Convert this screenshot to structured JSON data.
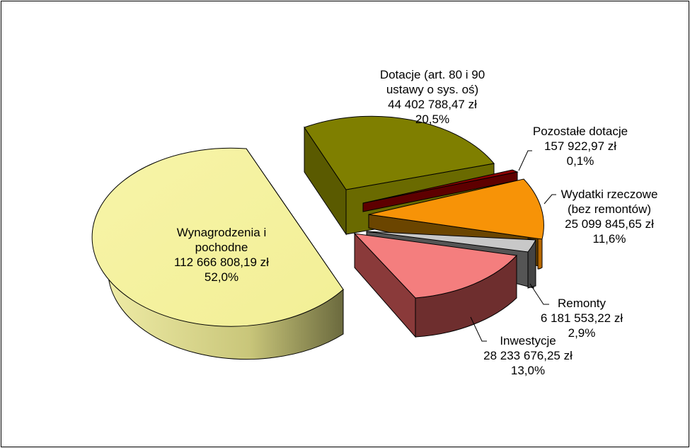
{
  "chart_data": {
    "type": "pie",
    "style": "3d-exploded",
    "legend": "none",
    "slices": [
      {
        "name": "Wynagrodzenia i pochodne",
        "label_lines": [
          "Wynagrodzenia i",
          "pochodne"
        ],
        "value": 112666808.19,
        "value_text": "112 666 808,19 zł",
        "percent": 52.0,
        "percent_text": "52,0%",
        "color": "#F5F2A0",
        "side_color": "#D6D37A"
      },
      {
        "name": "Dotacje (art. 80 i 90 ustawy o sys. oś)",
        "label_lines": [
          "Dotacje (art. 80 i 90",
          "ustawy o sys. oś)"
        ],
        "value": 44402788.47,
        "value_text": "44 402 788,47 zł",
        "percent": 20.5,
        "percent_text": "20,5%",
        "color": "#7F7F00",
        "side_color": "#5A5A00"
      },
      {
        "name": "Pozostałe dotacje",
        "label_lines": [
          "Pozostałe dotacje"
        ],
        "value": 157922.97,
        "value_text": "157 922,97 zł",
        "percent": 0.1,
        "percent_text": "0,1%",
        "color": "#8B0000",
        "side_color": "#5E0000"
      },
      {
        "name": "Wydatki rzeczowe (bez remontów)",
        "label_lines": [
          "Wydatki rzeczowe",
          "(bez remontów)"
        ],
        "value": 25099845.65,
        "value_text": "25 099 845,65 zł",
        "percent": 11.6,
        "percent_text": "11,6%",
        "color": "#F79307",
        "side_color": "#B86800"
      },
      {
        "name": "Remonty",
        "label_lines": [
          "Remonty"
        ],
        "value": 6181553.22,
        "value_text": "6 181 553,22 zł",
        "percent": 2.9,
        "percent_text": "2,9%",
        "color": "#C8C8C8",
        "side_color": "#555555"
      },
      {
        "name": "Inwestycje",
        "label_lines": [
          "Inwestycje"
        ],
        "value": 28233676.25,
        "value_text": "28 233 676,25 zł",
        "percent": 13.0,
        "percent_text": "13,0%",
        "color": "#F47E7E",
        "side_color": "#6E2E2E"
      }
    ]
  }
}
